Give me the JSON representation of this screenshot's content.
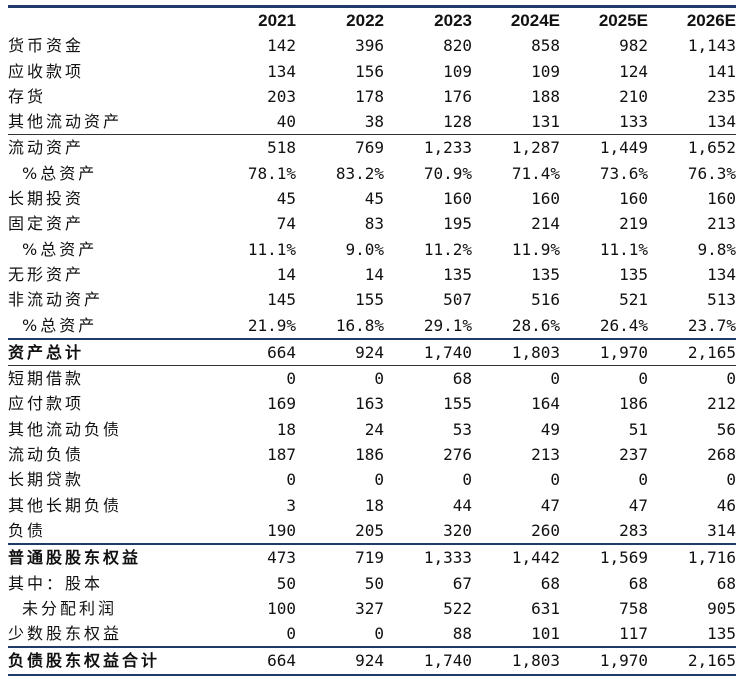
{
  "columns": [
    "",
    "2021",
    "2022",
    "2023",
    "2024E",
    "2025E",
    "2026E"
  ],
  "rows": [
    {
      "label": "货币资金",
      "values": [
        "142",
        "396",
        "820",
        "858",
        "982",
        "1,143"
      ]
    },
    {
      "label": "应收款项",
      "values": [
        "134",
        "156",
        "109",
        "109",
        "124",
        "141"
      ]
    },
    {
      "label": "存货",
      "values": [
        "203",
        "178",
        "176",
        "188",
        "210",
        "235"
      ]
    },
    {
      "label": "其他流动资产",
      "values": [
        "40",
        "38",
        "128",
        "131",
        "133",
        "134"
      ],
      "rule_below": "thin"
    },
    {
      "label": "流动资产",
      "values": [
        "518",
        "769",
        "1,233",
        "1,287",
        "1,449",
        "1,652"
      ]
    },
    {
      "label": "%总资产",
      "indent": true,
      "values": [
        "78.1%",
        "83.2%",
        "70.9%",
        "71.4%",
        "73.6%",
        "76.3%"
      ]
    },
    {
      "label": "长期投资",
      "values": [
        "45",
        "45",
        "160",
        "160",
        "160",
        "160"
      ]
    },
    {
      "label": "固定资产",
      "values": [
        "74",
        "83",
        "195",
        "214",
        "219",
        "213"
      ]
    },
    {
      "label": "%总资产",
      "indent": true,
      "values": [
        "11.1%",
        "9.0%",
        "11.2%",
        "11.9%",
        "11.1%",
        "9.8%"
      ]
    },
    {
      "label": "无形资产",
      "values": [
        "14",
        "14",
        "135",
        "135",
        "135",
        "134"
      ]
    },
    {
      "label": "非流动资产",
      "values": [
        "145",
        "155",
        "507",
        "516",
        "521",
        "513"
      ]
    },
    {
      "label": "%总资产",
      "indent": true,
      "values": [
        "21.9%",
        "16.8%",
        "29.1%",
        "28.6%",
        "26.4%",
        "23.7%"
      ],
      "rule_below": "thick"
    },
    {
      "label": "资产总计",
      "bold": true,
      "values": [
        "664",
        "924",
        "1,740",
        "1,803",
        "1,970",
        "2,165"
      ],
      "rule_below": "thin"
    },
    {
      "label": "短期借款",
      "values": [
        "0",
        "0",
        "68",
        "0",
        "0",
        "0"
      ]
    },
    {
      "label": "应付款项",
      "values": [
        "169",
        "163",
        "155",
        "164",
        "186",
        "212"
      ]
    },
    {
      "label": "其他流动负债",
      "values": [
        "18",
        "24",
        "53",
        "49",
        "51",
        "56"
      ]
    },
    {
      "label": "流动负债",
      "values": [
        "187",
        "186",
        "276",
        "213",
        "237",
        "268"
      ]
    },
    {
      "label": "长期贷款",
      "values": [
        "0",
        "0",
        "0",
        "0",
        "0",
        "0"
      ]
    },
    {
      "label": "其他长期负债",
      "values": [
        "3",
        "18",
        "44",
        "47",
        "47",
        "46"
      ]
    },
    {
      "label": "负债",
      "values": [
        "190",
        "205",
        "320",
        "260",
        "283",
        "314"
      ],
      "rule_below": "thick"
    },
    {
      "label": "普通股股东权益",
      "bold": true,
      "values": [
        "473",
        "719",
        "1,333",
        "1,442",
        "1,569",
        "1,716"
      ]
    },
    {
      "label": "其中：股本",
      "values": [
        "50",
        "50",
        "67",
        "68",
        "68",
        "68"
      ]
    },
    {
      "label": "未分配利润",
      "indent": true,
      "values": [
        "100",
        "327",
        "522",
        "631",
        "758",
        "905"
      ]
    },
    {
      "label": "少数股东权益",
      "values": [
        "0",
        "0",
        "88",
        "101",
        "117",
        "135"
      ],
      "rule_below": "thick"
    },
    {
      "label": "负债股东权益合计",
      "bold": true,
      "values": [
        "664",
        "924",
        "1,740",
        "1,803",
        "1,970",
        "2,165"
      ],
      "rule_below": "thick"
    }
  ]
}
